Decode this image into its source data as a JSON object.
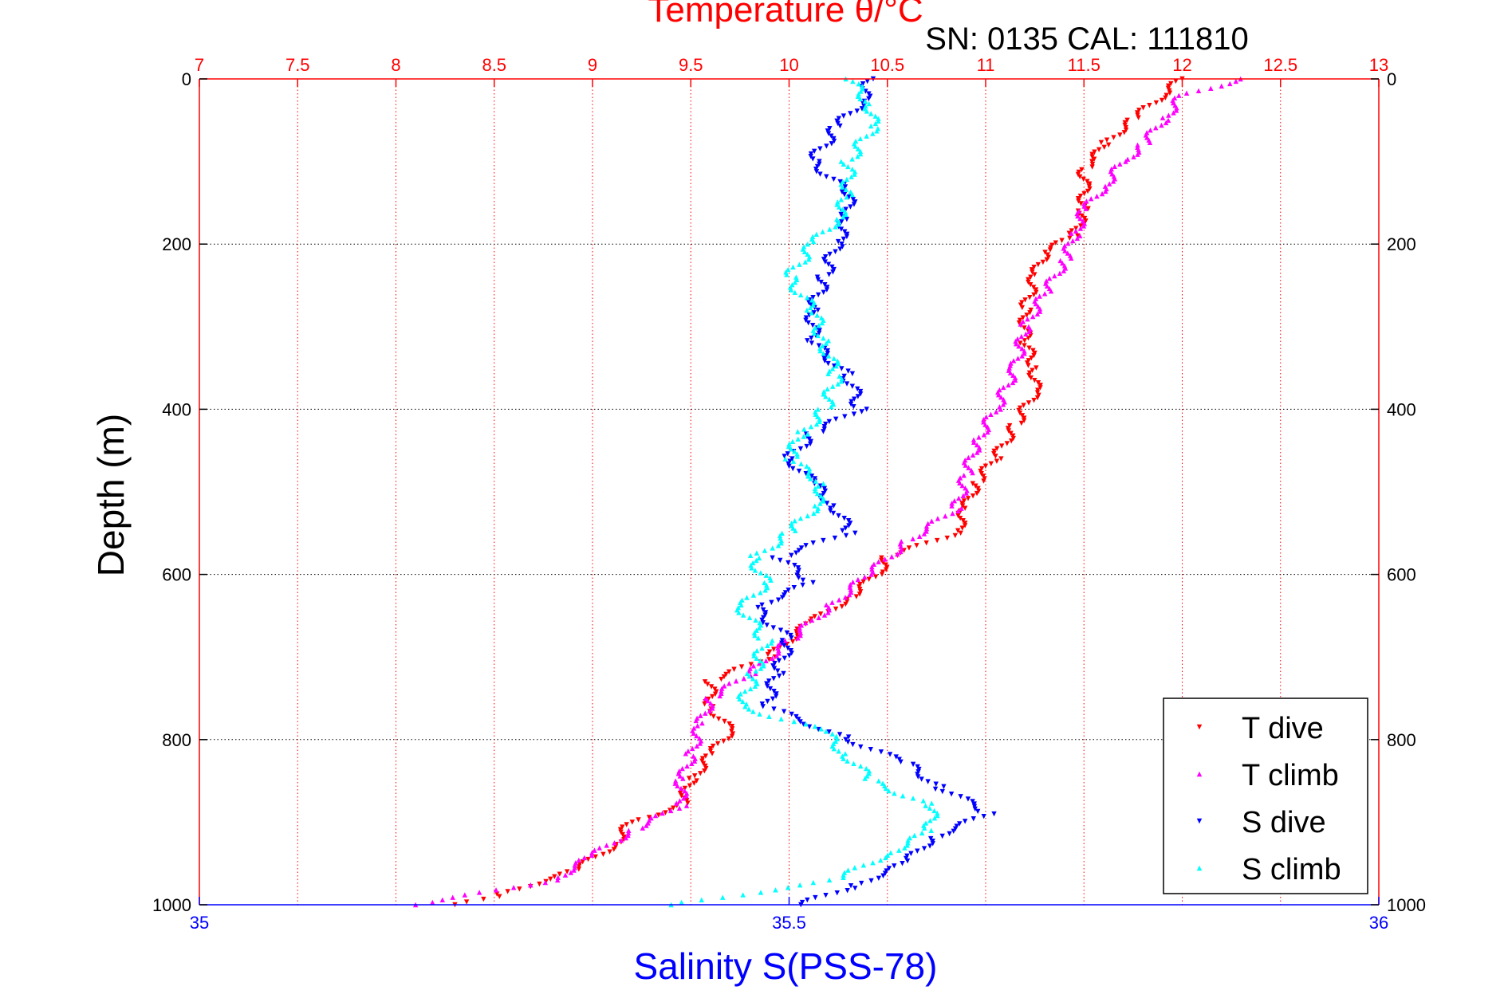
{
  "chart_data": {
    "type": "scatter",
    "title": "Temperature θ/°C",
    "annotation": "SN: 0135  CAL: 111810",
    "ylabel": "Depth (m)",
    "x_top_label": "Temperature θ/°C",
    "x_bottom_label": "Salinity S(PSS-78)",
    "ylim": [
      0,
      1000
    ],
    "y_reversed": true,
    "x_top_lim": [
      7,
      13
    ],
    "x_bottom_lim": [
      35,
      36
    ],
    "top_ticks": [
      "7",
      "7.5",
      "8",
      "8.5",
      "9",
      "9.5",
      "10",
      "10.5",
      "11",
      "11.5",
      "12",
      "12.5",
      "13"
    ],
    "top_tick_values": [
      7,
      7.5,
      8,
      8.5,
      9,
      9.5,
      10,
      10.5,
      11,
      11.5,
      12,
      12.5,
      13
    ],
    "bottom_ticks": [
      "35",
      "35.5",
      "36"
    ],
    "bottom_tick_values": [
      35,
      35.5,
      36
    ],
    "y_ticks": [
      "0",
      "200",
      "400",
      "600",
      "800",
      "1000"
    ],
    "y_tick_values": [
      0,
      200,
      400,
      600,
      800,
      1000
    ],
    "grid": true,
    "legend_position": "bottom-right",
    "colors": {
      "t_dive": "#ff0000",
      "t_climb": "#ff00ff",
      "s_dive": "#0000ff",
      "s_climb": "#00ffff",
      "top_axis": "#ff0000",
      "bottom_axis": "#0000ff"
    },
    "series": [
      {
        "name": "T dive",
        "axis": "temperature",
        "color": "#ff0000",
        "marker": "triangle-down",
        "depth": [
          0,
          20,
          50,
          80,
          100,
          110,
          130,
          160,
          190,
          210,
          240,
          280,
          320,
          350,
          380,
          420,
          460,
          490,
          520,
          550,
          580,
          600,
          630,
          660,
          700,
          730,
          760,
          790,
          820,
          850,
          880,
          900,
          930,
          960,
          990,
          1000
        ],
        "values": [
          12.0,
          11.9,
          11.75,
          11.6,
          11.55,
          11.5,
          11.5,
          11.5,
          11.45,
          11.3,
          11.25,
          11.2,
          11.2,
          11.25,
          11.25,
          11.15,
          11.05,
          10.95,
          10.9,
          10.85,
          10.5,
          10.45,
          10.3,
          10.1,
          9.9,
          9.6,
          9.6,
          9.7,
          9.6,
          9.5,
          9.45,
          9.2,
          9.1,
          8.9,
          8.5,
          8.3
        ]
      },
      {
        "name": "T climb",
        "axis": "temperature",
        "color": "#ff00ff",
        "marker": "triangle-up",
        "depth": [
          0,
          20,
          50,
          80,
          100,
          130,
          160,
          190,
          220,
          260,
          300,
          350,
          400,
          440,
          480,
          520,
          560,
          600,
          640,
          680,
          720,
          750,
          780,
          820,
          850,
          880,
          910,
          940,
          970,
          1000
        ],
        "values": [
          12.3,
          12.0,
          11.9,
          11.8,
          11.7,
          11.6,
          11.5,
          11.45,
          11.4,
          11.3,
          11.2,
          11.15,
          11.05,
          10.95,
          10.9,
          10.85,
          10.6,
          10.4,
          10.2,
          10.0,
          9.8,
          9.6,
          9.55,
          9.5,
          9.45,
          9.45,
          9.2,
          9.0,
          8.8,
          8.1
        ]
      },
      {
        "name": "S dive",
        "axis": "salinity",
        "color": "#0000ff",
        "marker": "triangle-down",
        "depth": [
          0,
          30,
          60,
          100,
          140,
          170,
          200,
          240,
          280,
          320,
          360,
          400,
          430,
          460,
          490,
          520,
          550,
          580,
          610,
          640,
          680,
          720,
          760,
          800,
          830,
          860,
          890,
          920,
          950,
          980,
          1000
        ],
        "values": [
          35.57,
          35.56,
          35.54,
          35.52,
          35.55,
          35.55,
          35.54,
          35.53,
          35.52,
          35.52,
          35.55,
          35.56,
          35.52,
          35.5,
          35.52,
          35.54,
          35.55,
          35.49,
          35.52,
          35.47,
          35.5,
          35.49,
          35.48,
          35.55,
          35.6,
          35.63,
          35.67,
          35.62,
          35.6,
          35.55,
          35.51
        ]
      },
      {
        "name": "S climb",
        "axis": "salinity",
        "color": "#00ffff",
        "marker": "triangle-up",
        "depth": [
          0,
          30,
          60,
          100,
          140,
          170,
          200,
          240,
          280,
          320,
          360,
          400,
          430,
          460,
          490,
          520,
          550,
          580,
          610,
          640,
          680,
          720,
          760,
          790,
          820,
          850,
          880,
          910,
          940,
          970,
          1000
        ],
        "values": [
          35.55,
          35.57,
          35.57,
          35.55,
          35.55,
          35.54,
          35.52,
          35.5,
          35.52,
          35.53,
          35.54,
          35.53,
          35.51,
          35.5,
          35.53,
          35.52,
          35.5,
          35.47,
          35.48,
          35.46,
          35.48,
          35.47,
          35.46,
          35.53,
          35.55,
          35.57,
          35.62,
          35.62,
          35.58,
          35.54,
          35.4
        ]
      }
    ]
  }
}
